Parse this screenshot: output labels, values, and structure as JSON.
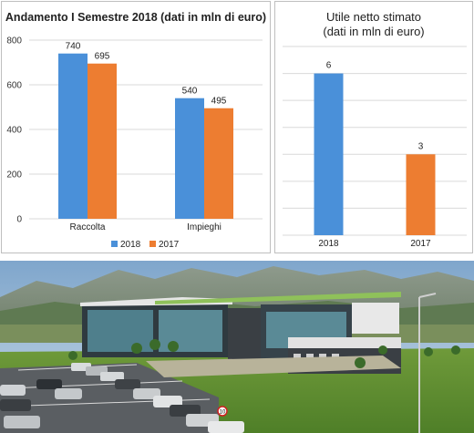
{
  "chart_data": [
    {
      "type": "bar",
      "title": "Andamento I Semestre 2018 (dati in mln di euro)",
      "categories": [
        "Raccolta",
        "Impieghi"
      ],
      "series": [
        {
          "name": "2018",
          "values": [
            740,
            540
          ],
          "color": "#4a90d9"
        },
        {
          "name": "2017",
          "values": [
            695,
            495
          ],
          "color": "#ed7d31"
        }
      ],
      "data_labels": [
        [
          "740",
          "540"
        ],
        [
          "695",
          "495"
        ]
      ],
      "ylim": [
        0,
        800
      ],
      "yticks": [
        0,
        200,
        400,
        600,
        800
      ],
      "ytick_labels": [
        "0",
        "200",
        "400",
        "600",
        "800"
      ],
      "grid": true,
      "legend": "bottom"
    },
    {
      "type": "bar",
      "title": "Utile netto stimato",
      "subtitle": "(dati in mln di euro)",
      "categories": [
        "2018",
        "2017"
      ],
      "values": [
        6,
        3
      ],
      "data_labels": [
        "6",
        "3"
      ],
      "colors": [
        "#4a90d9",
        "#ed7d31"
      ],
      "ylim": [
        0,
        7
      ],
      "grid": true
    }
  ],
  "photo": {
    "description_icon": "building-photo",
    "sign_text": "10"
  }
}
